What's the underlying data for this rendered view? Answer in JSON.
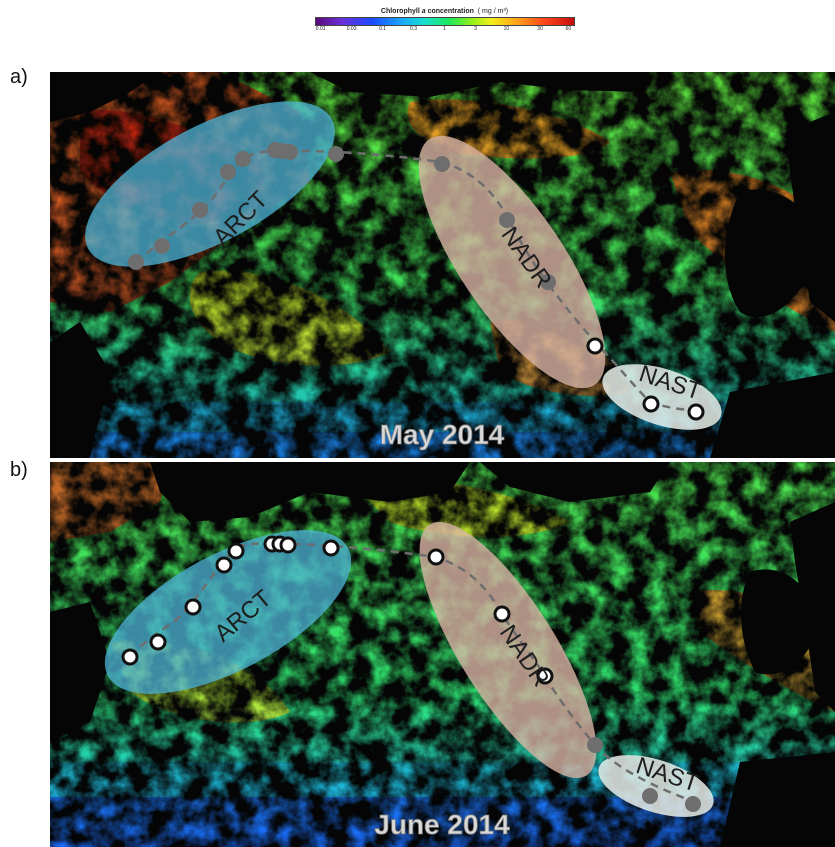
{
  "colorbar": {
    "title_prefix": "Chlorophyll ",
    "title_italic": "a",
    "title_suffix": " concentration",
    "units": "( mg / m³)",
    "ticks": [
      "0.01",
      "0.03",
      "0.1",
      "0.3",
      "1",
      "3",
      "10",
      "30",
      "60"
    ]
  },
  "panels": [
    {
      "label": "a)",
      "date": "May 2014",
      "regions": [
        {
          "name": "ARCT"
        },
        {
          "name": "NADR"
        },
        {
          "name": "NAST"
        }
      ],
      "station_style": "grey-filled (ARCT, NADR), white-open (NADR south, NAST)"
    },
    {
      "label": "b)",
      "date": "June 2014",
      "regions": [
        {
          "name": "ARCT"
        },
        {
          "name": "NADR"
        },
        {
          "name": "NAST"
        }
      ],
      "station_style": "white-open (ARCT, NADR), grey-filled (NADR south, NAST)"
    }
  ],
  "colors": {
    "arct_region": "#4fb6d8",
    "nadr_region": "#d8b4a4",
    "nast_region": "#e8eeea",
    "track_line": "#6e6e6e",
    "land": "#050505"
  }
}
